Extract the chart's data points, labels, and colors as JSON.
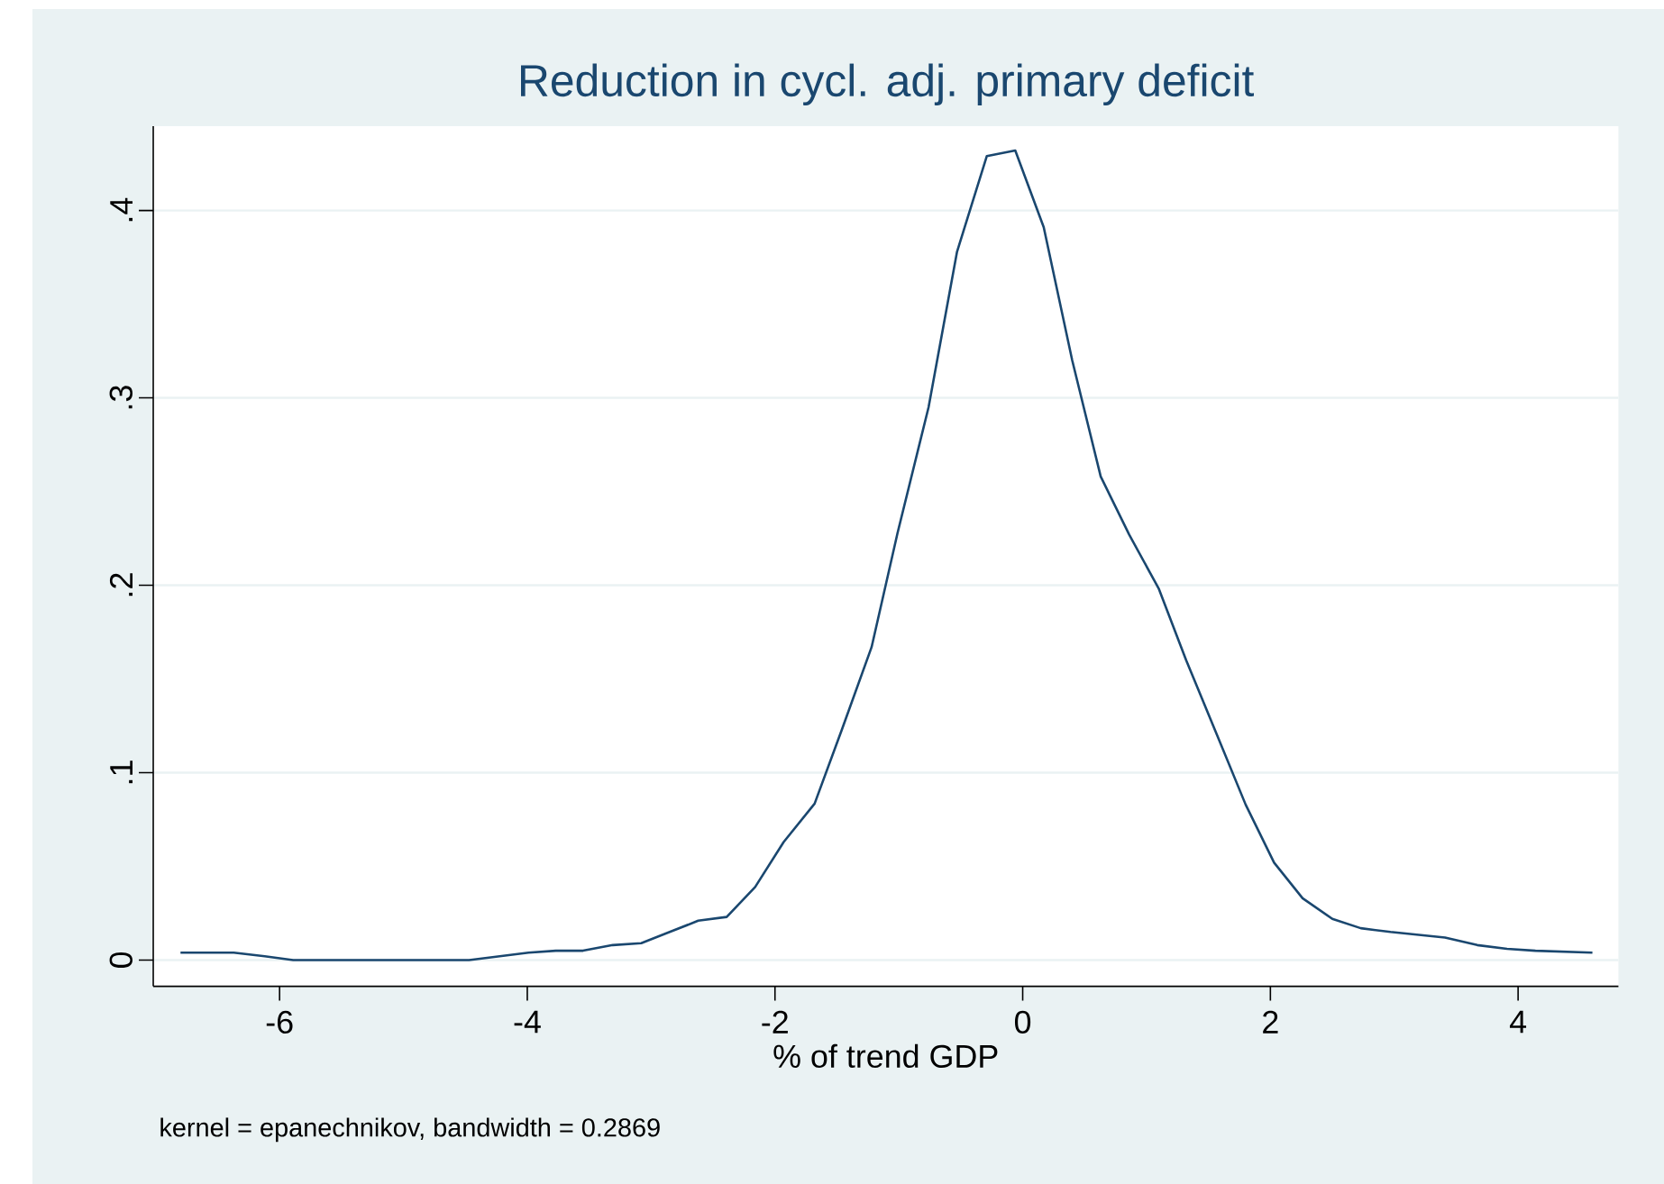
{
  "chart_data": {
    "type": "line",
    "title": "Reduction in cycl. adj. primary deficit",
    "xlabel": "% of trend GDP",
    "annotations": [
      "kernel = epanechnikov, bandwidth = 0.2869"
    ],
    "x": [
      -6.8,
      -6.58,
      -6.37,
      -6.12,
      -5.89,
      -4.47,
      -3.99,
      -3.77,
      -3.55,
      -3.31,
      -3.08,
      -2.85,
      -2.62,
      -2.39,
      -2.16,
      -1.93,
      -1.68,
      -1.46,
      -1.22,
      -1.01,
      -0.76,
      -0.53,
      -0.29,
      -0.06,
      0.17,
      0.4,
      0.63,
      0.86,
      1.1,
      1.32,
      1.57,
      1.8,
      2.03,
      2.26,
      2.5,
      2.73,
      2.97,
      3.41,
      3.67,
      3.91,
      4.14,
      4.6
    ],
    "series": [
      {
        "color": "#1a476f",
        "values": [
          0.004,
          0.004,
          0.004,
          0.002,
          0,
          0,
          0.004,
          0.005,
          0.005,
          0.008,
          0.009,
          0.015,
          0.021,
          0.023,
          0.039,
          0.063,
          0.0835,
          0.123,
          0.167,
          0.228,
          0.295,
          0.378,
          0.429,
          0.432,
          0.391,
          0.32,
          0.258,
          0.227,
          0.198,
          0.16,
          0.12,
          0.083,
          0.052,
          0.033,
          0.022,
          0.017,
          0.015,
          0.012,
          0.008,
          0.006,
          0.005,
          0.004
        ]
      }
    ],
    "xlim": [
      -7.02,
      4.81
    ],
    "ylim": [
      -0.014,
      0.445
    ],
    "xticks": [
      -6,
      -4,
      -2,
      0,
      2,
      4
    ],
    "yticks": [
      0,
      {
        "value": 0.1,
        "label": ".1"
      },
      {
        "value": 0.2,
        "label": ".2"
      },
      {
        "value": 0.3,
        "label": ".3"
      },
      {
        "value": 0.4,
        "label": ".4"
      }
    ],
    "grid": "y",
    "line_style": "solid"
  }
}
